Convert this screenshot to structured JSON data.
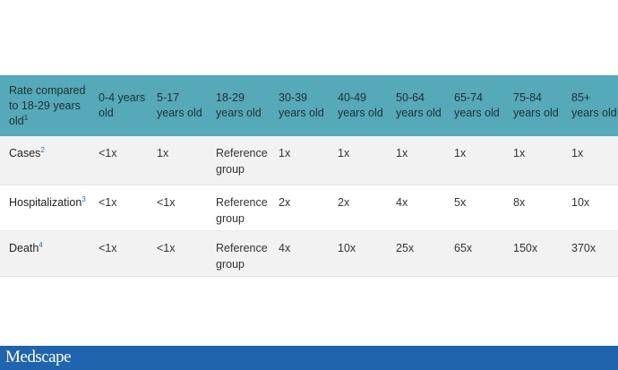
{
  "table": {
    "header_label": "Rate compared to 18-29 years old",
    "header_note": "1",
    "columns": [
      "0-4 years old",
      "5-17 years old",
      "18-29 years old",
      "30-39 years old",
      "40-49 years old",
      "50-64 years old",
      "65-74 years old",
      "75-84 years old",
      "85+ years old"
    ],
    "rows": [
      {
        "label": "Cases",
        "note": "2",
        "values": [
          "<1x",
          "1x",
          "Reference group",
          "1x",
          "1x",
          "1x",
          "1x",
          "1x",
          "1x"
        ]
      },
      {
        "label": "Hospitalization",
        "note": "3",
        "values": [
          "<1x",
          "<1x",
          "Reference group",
          "2x",
          "2x",
          "4x",
          "5x",
          "8x",
          "10x"
        ]
      },
      {
        "label": "Death",
        "note": "4",
        "values": [
          "<1x",
          "<1x",
          "Reference group",
          "4x",
          "10x",
          "25x",
          "65x",
          "150x",
          "370x"
        ]
      }
    ]
  },
  "footer": {
    "logo_text": "Medscape"
  },
  "colors": {
    "header_bg": "#55a9b8",
    "footer_bg": "#1f64ad",
    "note_link": "#2b6fb3"
  }
}
